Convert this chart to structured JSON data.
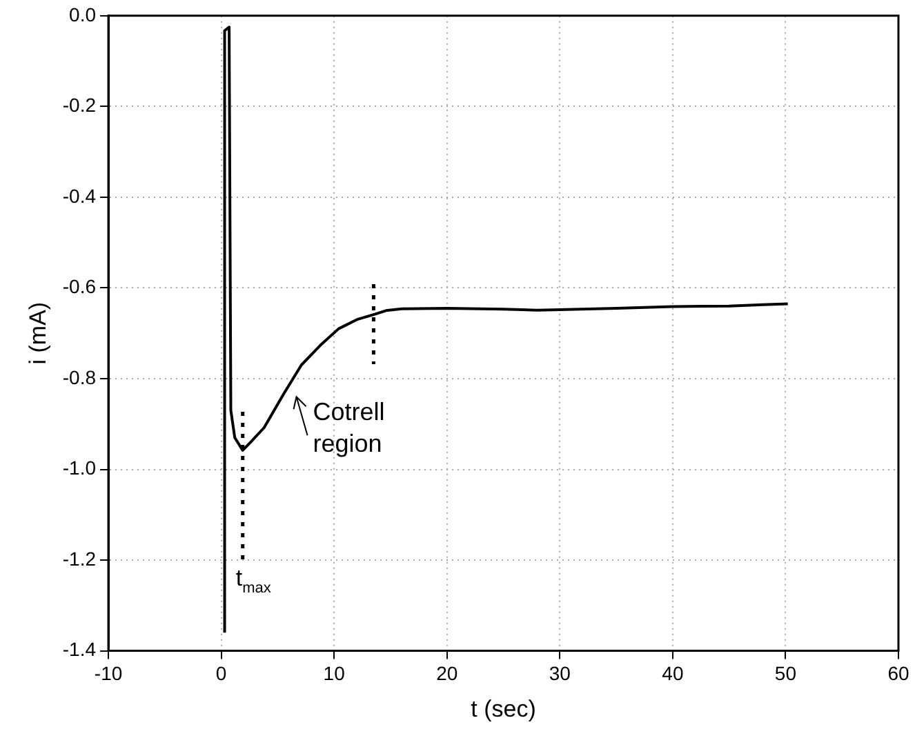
{
  "chart_data": {
    "type": "line",
    "xlabel": "t (sec)",
    "ylabel": "i (mA)",
    "xlim": [
      -10,
      60
    ],
    "xticks": [
      -10,
      0,
      10,
      20,
      30,
      40,
      50,
      60
    ],
    "ylim": [
      -1.4,
      0
    ],
    "yticks": [
      {
        "value": 0,
        "label": "0.0"
      },
      -0.2,
      -0.4,
      -0.6,
      -0.8,
      {
        "value": -1,
        "label": "-1.0"
      },
      -1.2,
      -1.4
    ],
    "grid": true,
    "marker": "none",
    "line_style": "solid",
    "series": [
      {
        "color": "#000000",
        "x": [
          0.3,
          0.3,
          0.7,
          0.85,
          1.2,
          1.9,
          2.6,
          3.8,
          5.5,
          7.1,
          8.8,
          10.4,
          12.1,
          13.6,
          14.6,
          16,
          20,
          25,
          28,
          30,
          35,
          40,
          45,
          48,
          50.2
        ],
        "values": [
          -1.36,
          -0.033,
          -0.025,
          -0.87,
          -0.93,
          -0.958,
          -0.94,
          -0.908,
          -0.835,
          -0.77,
          -0.726,
          -0.69,
          -0.669,
          -0.658,
          -0.65,
          -0.646,
          -0.645,
          -0.647,
          -0.649,
          -0.648,
          -0.645,
          -0.641,
          -0.64,
          -0.637,
          -0.635
        ]
      }
    ],
    "ref_lines": [
      {
        "axis": "x",
        "value": 1.9,
        "label": "t$_{max}$",
        "line_style": "dotted",
        "color": "#000000"
      },
      {
        "axis": "x",
        "value": 13.5,
        "line_style": "dotted",
        "color": "#000000"
      }
    ],
    "annotations": [
      "Cotrell region"
    ]
  }
}
